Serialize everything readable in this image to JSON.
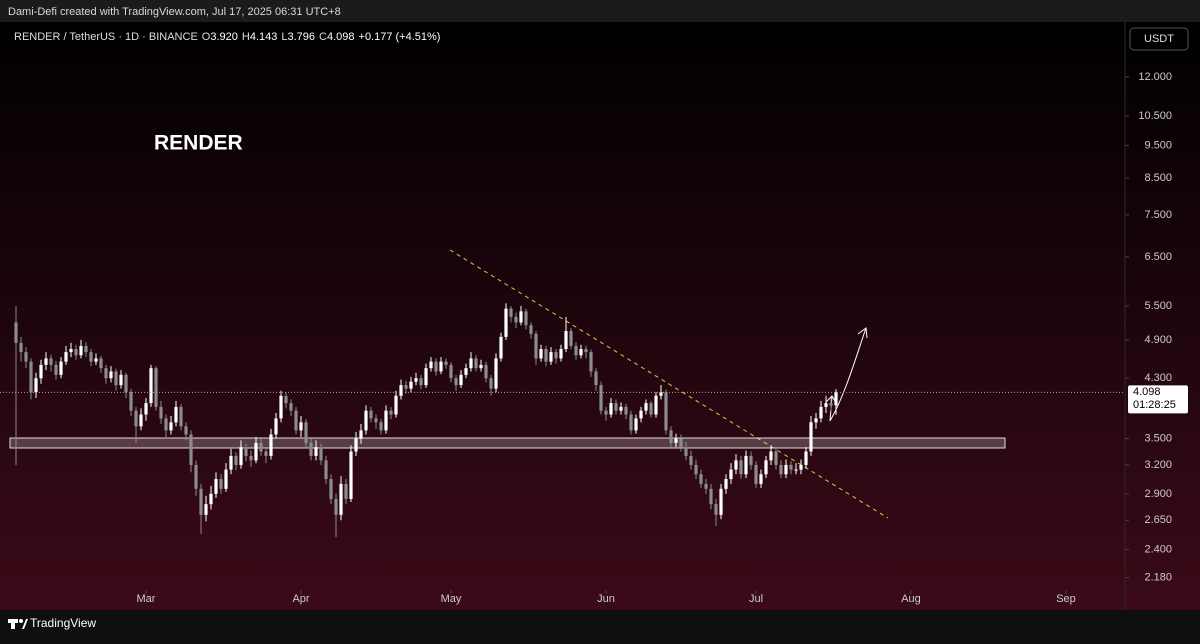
{
  "header": "Dami-Defi created with TradingView.com, Jul 17, 2025 06:31 UTC+8",
  "footer": "TradingView",
  "chart_data": {
    "type": "candlestick",
    "title": "RENDER / TetherUS · 1D · BINANCE",
    "legend": [
      {
        "key": "O",
        "value": "3.920"
      },
      {
        "key": "H",
        "value": "4.143"
      },
      {
        "key": "L",
        "value": "3.796"
      },
      {
        "key": "C",
        "value": "4.098"
      }
    ],
    "change": "+0.177 (+4.51%)",
    "currency": "USDT",
    "annotation": "RENDER",
    "countdown": "01:28:25",
    "up_color": "#ffffff",
    "down_color": "#8c8c8c",
    "log_scale": true,
    "ylim": [
      2.09,
      14.47
    ],
    "yticks": [
      {
        "value": 2.18,
        "label": "2.180"
      },
      {
        "value": 2.4,
        "label": "2.400"
      },
      {
        "value": 2.65,
        "label": "2.650"
      },
      {
        "value": 2.9,
        "label": "2.900"
      },
      {
        "value": 3.2,
        "label": "3.200"
      },
      {
        "value": 3.5,
        "label": "3.500"
      },
      {
        "value": 4.3,
        "label": "4.300"
      },
      {
        "value": 4.9,
        "label": "4.900"
      },
      {
        "value": 5.5,
        "label": "5.500"
      },
      {
        "value": 6.5,
        "label": "6.500"
      },
      {
        "value": 7.5,
        "label": "7.500"
      },
      {
        "value": 8.5,
        "label": "8.500"
      },
      {
        "value": 9.5,
        "label": "9.500"
      },
      {
        "value": 10.5,
        "label": "10.500"
      },
      {
        "value": 12,
        "label": "12.000"
      }
    ],
    "xlim": [
      -3.2,
      221.8
    ],
    "xticks": [
      {
        "value": 26,
        "label": "Mar"
      },
      {
        "value": 57,
        "label": "Apr"
      },
      {
        "value": 87,
        "label": "May"
      },
      {
        "value": 118,
        "label": "Jun"
      },
      {
        "value": 148,
        "label": "Jul"
      },
      {
        "value": 179,
        "label": "Aug"
      },
      {
        "value": 210,
        "label": "Sep"
      }
    ],
    "candles": [
      [
        5.2,
        5.5,
        3.2,
        4.85
      ],
      [
        4.85,
        4.95,
        4.55,
        4.7
      ],
      [
        4.7,
        4.78,
        4.45,
        4.55
      ],
      [
        4.55,
        4.6,
        4.0,
        4.1
      ],
      [
        4.1,
        4.38,
        4.02,
        4.3
      ],
      [
        4.3,
        4.58,
        4.22,
        4.5
      ],
      [
        4.5,
        4.7,
        4.42,
        4.6
      ],
      [
        4.6,
        4.66,
        4.4,
        4.5
      ],
      [
        4.5,
        4.56,
        4.28,
        4.35
      ],
      [
        4.35,
        4.62,
        4.3,
        4.55
      ],
      [
        4.55,
        4.8,
        4.5,
        4.7
      ],
      [
        4.7,
        4.85,
        4.62,
        4.75
      ],
      [
        4.75,
        4.82,
        4.58,
        4.65
      ],
      [
        4.65,
        4.9,
        4.6,
        4.8
      ],
      [
        4.8,
        4.86,
        4.62,
        4.7
      ],
      [
        4.7,
        4.75,
        4.48,
        4.55
      ],
      [
        4.55,
        4.68,
        4.5,
        4.6
      ],
      [
        4.6,
        4.64,
        4.38,
        4.45
      ],
      [
        4.45,
        4.5,
        4.22,
        4.3
      ],
      [
        4.3,
        4.48,
        4.24,
        4.4
      ],
      [
        4.4,
        4.44,
        4.12,
        4.2
      ],
      [
        4.2,
        4.42,
        4.15,
        4.35
      ],
      [
        4.35,
        4.38,
        4.02,
        4.1
      ],
      [
        4.1,
        4.15,
        3.78,
        3.85
      ],
      [
        3.85,
        3.9,
        3.45,
        3.65
      ],
      [
        3.65,
        3.88,
        3.6,
        3.8
      ],
      [
        3.8,
        4.02,
        3.72,
        3.95
      ],
      [
        3.95,
        4.5,
        3.9,
        4.45
      ],
      [
        4.45,
        4.48,
        3.85,
        3.9
      ],
      [
        3.9,
        3.98,
        3.68,
        3.75
      ],
      [
        3.75,
        3.8,
        3.5,
        3.6
      ],
      [
        3.6,
        3.78,
        3.55,
        3.7
      ],
      [
        3.7,
        3.98,
        3.65,
        3.9
      ],
      [
        3.9,
        3.94,
        3.6,
        3.65
      ],
      [
        3.65,
        3.7,
        3.48,
        3.55
      ],
      [
        3.55,
        3.6,
        3.12,
        3.2
      ],
      [
        3.2,
        3.25,
        2.88,
        2.95
      ],
      [
        2.95,
        3.0,
        2.53,
        2.7
      ],
      [
        2.7,
        2.88,
        2.64,
        2.8
      ],
      [
        2.8,
        2.98,
        2.75,
        2.9
      ],
      [
        2.9,
        3.12,
        2.86,
        3.05
      ],
      [
        3.05,
        3.1,
        2.9,
        2.95
      ],
      [
        2.95,
        3.22,
        2.92,
        3.15
      ],
      [
        3.15,
        3.38,
        3.1,
        3.3
      ],
      [
        3.3,
        3.34,
        3.14,
        3.2
      ],
      [
        3.2,
        3.48,
        3.16,
        3.4
      ],
      [
        3.4,
        3.44,
        3.24,
        3.3
      ],
      [
        3.3,
        3.36,
        3.18,
        3.25
      ],
      [
        3.25,
        3.52,
        3.22,
        3.45
      ],
      [
        3.45,
        3.5,
        3.3,
        3.35
      ],
      [
        3.35,
        3.4,
        3.22,
        3.3
      ],
      [
        3.3,
        3.62,
        3.26,
        3.55
      ],
      [
        3.55,
        3.82,
        3.5,
        3.75
      ],
      [
        3.75,
        4.12,
        3.7,
        4.05
      ],
      [
        4.05,
        4.1,
        3.88,
        3.95
      ],
      [
        3.95,
        4.0,
        3.78,
        3.85
      ],
      [
        3.85,
        3.9,
        3.55,
        3.6
      ],
      [
        3.6,
        3.78,
        3.52,
        3.7
      ],
      [
        3.7,
        3.74,
        3.4,
        3.45
      ],
      [
        3.45,
        3.5,
        3.25,
        3.3
      ],
      [
        3.3,
        3.48,
        3.25,
        3.4
      ],
      [
        3.4,
        3.44,
        3.2,
        3.25
      ],
      [
        3.25,
        3.3,
        3.0,
        3.05
      ],
      [
        3.05,
        3.1,
        2.8,
        2.85
      ],
      [
        2.85,
        2.9,
        2.5,
        2.7
      ],
      [
        2.7,
        3.08,
        2.65,
        3.0
      ],
      [
        3.0,
        3.05,
        2.8,
        2.85
      ],
      [
        2.85,
        3.42,
        2.82,
        3.35
      ],
      [
        3.35,
        3.58,
        3.3,
        3.5
      ],
      [
        3.5,
        3.68,
        3.44,
        3.6
      ],
      [
        3.6,
        3.92,
        3.55,
        3.85
      ],
      [
        3.85,
        3.9,
        3.7,
        3.75
      ],
      [
        3.75,
        3.8,
        3.62,
        3.7
      ],
      [
        3.7,
        3.74,
        3.55,
        3.6
      ],
      [
        3.6,
        3.92,
        3.56,
        3.85
      ],
      [
        3.85,
        3.9,
        3.74,
        3.8
      ],
      [
        3.8,
        4.12,
        3.76,
        4.05
      ],
      [
        4.05,
        4.28,
        4.0,
        4.2
      ],
      [
        4.2,
        4.26,
        4.08,
        4.15
      ],
      [
        4.15,
        4.32,
        4.1,
        4.25
      ],
      [
        4.25,
        4.38,
        4.2,
        4.3
      ],
      [
        4.3,
        4.35,
        4.14,
        4.2
      ],
      [
        4.2,
        4.52,
        4.16,
        4.45
      ],
      [
        4.45,
        4.62,
        4.4,
        4.55
      ],
      [
        4.55,
        4.6,
        4.34,
        4.4
      ],
      [
        4.4,
        4.62,
        4.36,
        4.55
      ],
      [
        4.55,
        4.6,
        4.44,
        4.5
      ],
      [
        4.5,
        4.54,
        4.24,
        4.3
      ],
      [
        4.3,
        4.35,
        4.12,
        4.2
      ],
      [
        4.2,
        4.42,
        4.16,
        4.35
      ],
      [
        4.35,
        4.52,
        4.3,
        4.45
      ],
      [
        4.45,
        4.7,
        4.4,
        4.6
      ],
      [
        4.6,
        4.65,
        4.4,
        4.45
      ],
      [
        4.45,
        4.58,
        4.4,
        4.5
      ],
      [
        4.5,
        4.55,
        4.24,
        4.3
      ],
      [
        4.3,
        4.35,
        4.05,
        4.15
      ],
      [
        4.15,
        4.68,
        4.1,
        4.6
      ],
      [
        4.6,
        5.02,
        4.55,
        4.95
      ],
      [
        4.95,
        5.55,
        4.9,
        5.45
      ],
      [
        5.45,
        5.5,
        5.2,
        5.3
      ],
      [
        5.3,
        5.38,
        5.1,
        5.2
      ],
      [
        5.2,
        5.5,
        5.15,
        5.4
      ],
      [
        5.4,
        5.45,
        5.08,
        5.15
      ],
      [
        5.15,
        5.2,
        4.92,
        5.0
      ],
      [
        5.0,
        5.05,
        4.5,
        4.6
      ],
      [
        4.6,
        4.82,
        4.55,
        4.75
      ],
      [
        4.75,
        4.8,
        4.48,
        4.55
      ],
      [
        4.55,
        4.78,
        4.5,
        4.7
      ],
      [
        4.7,
        4.75,
        4.52,
        4.6
      ],
      [
        4.6,
        4.82,
        4.55,
        4.75
      ],
      [
        4.75,
        5.3,
        4.7,
        5.05
      ],
      [
        5.05,
        5.1,
        4.75,
        4.8
      ],
      [
        4.8,
        4.86,
        4.58,
        4.65
      ],
      [
        4.65,
        4.82,
        4.6,
        4.75
      ],
      [
        4.75,
        4.8,
        4.6,
        4.7
      ],
      [
        4.7,
        4.74,
        4.32,
        4.4
      ],
      [
        4.4,
        4.45,
        4.12,
        4.2
      ],
      [
        4.2,
        4.25,
        3.8,
        3.85
      ],
      [
        3.85,
        3.9,
        3.72,
        3.8
      ],
      [
        3.8,
        4.02,
        3.76,
        3.95
      ],
      [
        3.95,
        4.0,
        3.8,
        3.85
      ],
      [
        3.85,
        3.96,
        3.8,
        3.9
      ],
      [
        3.9,
        3.94,
        3.74,
        3.8
      ],
      [
        3.8,
        3.85,
        3.55,
        3.6
      ],
      [
        3.6,
        3.8,
        3.56,
        3.75
      ],
      [
        3.75,
        3.9,
        3.7,
        3.85
      ],
      [
        3.85,
        4.0,
        3.8,
        3.95
      ],
      [
        3.95,
        3.98,
        3.76,
        3.8
      ],
      [
        3.8,
        4.1,
        3.76,
        4.05
      ],
      [
        4.05,
        4.2,
        4.0,
        4.1
      ],
      [
        4.1,
        4.14,
        3.55,
        3.6
      ],
      [
        3.6,
        3.65,
        3.4,
        3.45
      ],
      [
        3.45,
        3.56,
        3.4,
        3.5
      ],
      [
        3.5,
        3.55,
        3.35,
        3.4
      ],
      [
        3.4,
        3.46,
        3.25,
        3.3
      ],
      [
        3.3,
        3.36,
        3.15,
        3.2
      ],
      [
        3.2,
        3.26,
        3.05,
        3.1
      ],
      [
        3.1,
        3.15,
        2.96,
        3.0
      ],
      [
        3.0,
        3.05,
        2.9,
        2.95
      ],
      [
        2.95,
        3.0,
        2.75,
        2.8
      ],
      [
        2.8,
        2.85,
        2.6,
        2.7
      ],
      [
        2.7,
        3.0,
        2.66,
        2.95
      ],
      [
        2.95,
        3.1,
        2.9,
        3.05
      ],
      [
        3.05,
        3.22,
        3.0,
        3.15
      ],
      [
        3.15,
        3.32,
        3.1,
        3.25
      ],
      [
        3.25,
        3.3,
        3.05,
        3.1
      ],
      [
        3.1,
        3.36,
        3.06,
        3.3
      ],
      [
        3.3,
        3.35,
        3.15,
        3.2
      ],
      [
        3.2,
        3.24,
        2.96,
        3.0
      ],
      [
        3.0,
        3.15,
        2.96,
        3.1
      ],
      [
        3.1,
        3.3,
        3.06,
        3.25
      ],
      [
        3.25,
        3.42,
        3.2,
        3.35
      ],
      [
        3.35,
        3.38,
        3.15,
        3.2
      ],
      [
        3.2,
        3.25,
        3.06,
        3.1
      ],
      [
        3.1,
        3.26,
        3.06,
        3.2
      ],
      [
        3.2,
        3.24,
        3.1,
        3.15
      ],
      [
        3.15,
        3.22,
        3.1,
        3.15
      ],
      [
        3.15,
        3.26,
        3.1,
        3.2
      ],
      [
        3.2,
        3.4,
        3.16,
        3.35
      ],
      [
        3.35,
        3.78,
        3.3,
        3.7
      ],
      [
        3.7,
        3.82,
        3.62,
        3.75
      ],
      [
        3.75,
        3.98,
        3.7,
        3.9
      ],
      [
        3.9,
        4.05,
        3.82,
        3.95
      ],
      [
        3.95,
        4.02,
        3.84,
        3.92
      ],
      [
        3.92,
        4.143,
        3.796,
        4.098
      ]
    ]
  }
}
